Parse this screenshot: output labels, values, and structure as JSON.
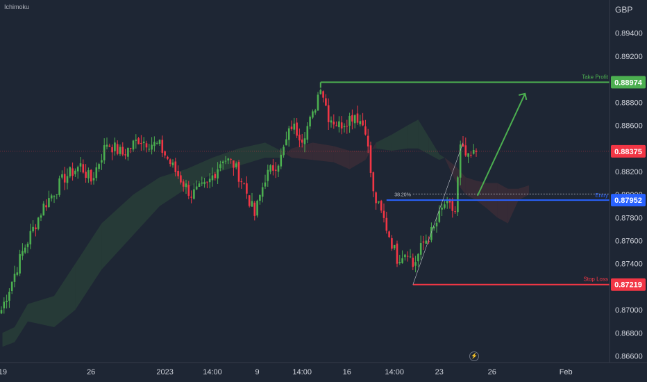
{
  "indicator": "Ichimoku",
  "currency": "GBP",
  "colors": {
    "background": "#1e2634",
    "bull": "#4caf50",
    "bear": "#f23645",
    "take_profit": "#4caf50",
    "stop_loss": "#f23645",
    "entry": "#2962ff",
    "current_price": "#f23645",
    "cloud_bull": "#2d4a3a",
    "cloud_bear": "#4a2f38",
    "axis_text": "#d1d4dc"
  },
  "icons": {
    "replay": "lightning-icon"
  },
  "chart_data": {
    "type": "candlestick",
    "instrument_currency": "GBP",
    "ylim": [
      0.866,
      0.896
    ],
    "y_ticks": [
      "0.89400",
      "0.89200",
      "0.88800",
      "0.88600",
      "0.88200",
      "0.88000",
      "0.87800",
      "0.87600",
      "0.87400",
      "0.87000",
      "0.86800",
      "0.86600"
    ],
    "x_ticks": [
      "19",
      "26",
      "2023",
      "14:00",
      "9",
      "14:00",
      "16",
      "14:00",
      "23",
      "26",
      "Feb"
    ],
    "levels": [
      {
        "name": "Take Profit",
        "value": 0.88974,
        "value_label": "0.88974"
      },
      {
        "name": "Stop Loss",
        "value": 0.87219,
        "value_label": "0.87219"
      },
      {
        "name": "Entry",
        "value": 0.87952,
        "value_label": "0.87952"
      }
    ],
    "current_price": {
      "value": 0.88375,
      "label": "0.88375"
    },
    "fib_label": "38.20%",
    "waypoints": [
      {
        "i": 0,
        "c": 0.87
      },
      {
        "i": 8,
        "c": 0.875
      },
      {
        "i": 16,
        "c": 0.879
      },
      {
        "i": 24,
        "c": 0.8815
      },
      {
        "i": 30,
        "c": 0.8825
      },
      {
        "i": 34,
        "c": 0.8812
      },
      {
        "i": 40,
        "c": 0.8845
      },
      {
        "i": 46,
        "c": 0.8835
      },
      {
        "i": 52,
        "c": 0.8848
      },
      {
        "i": 60,
        "c": 0.8842
      },
      {
        "i": 66,
        "c": 0.882
      },
      {
        "i": 72,
        "c": 0.88
      },
      {
        "i": 78,
        "c": 0.8808
      },
      {
        "i": 84,
        "c": 0.8832
      },
      {
        "i": 88,
        "c": 0.8826
      },
      {
        "i": 92,
        "c": 0.8808
      },
      {
        "i": 96,
        "c": 0.8782
      },
      {
        "i": 100,
        "c": 0.8815
      },
      {
        "i": 106,
        "c": 0.8832
      },
      {
        "i": 110,
        "c": 0.886
      },
      {
        "i": 114,
        "c": 0.885
      },
      {
        "i": 118,
        "c": 0.8868
      },
      {
        "i": 121,
        "c": 0.8896
      },
      {
        "i": 124,
        "c": 0.8868
      },
      {
        "i": 128,
        "c": 0.886
      },
      {
        "i": 134,
        "c": 0.887
      },
      {
        "i": 138,
        "c": 0.8858
      },
      {
        "i": 141,
        "c": 0.88
      },
      {
        "i": 145,
        "c": 0.8778
      },
      {
        "i": 150,
        "c": 0.8745
      },
      {
        "i": 154,
        "c": 0.8752
      },
      {
        "i": 156,
        "c": 0.8738
      },
      {
        "i": 160,
        "c": 0.8758
      },
      {
        "i": 164,
        "c": 0.877
      },
      {
        "i": 168,
        "c": 0.8792
      },
      {
        "i": 172,
        "c": 0.8785
      },
      {
        "i": 174,
        "c": 0.884
      },
      {
        "i": 177,
        "c": 0.883
      },
      {
        "i": 180,
        "c": 0.8837
      }
    ],
    "cloud": [
      {
        "x": 0.4,
        "a": 0.868,
        "b": 0.8668
      },
      {
        "x": 5,
        "a": 0.8685,
        "b": 0.8672
      },
      {
        "x": 10,
        "a": 0.8705,
        "b": 0.869
      },
      {
        "x": 20,
        "a": 0.8712,
        "b": 0.8685
      },
      {
        "x": 28,
        "a": 0.874,
        "b": 0.87
      },
      {
        "x": 38,
        "a": 0.8775,
        "b": 0.8735
      },
      {
        "x": 50,
        "a": 0.88,
        "b": 0.8765
      },
      {
        "x": 60,
        "a": 0.8815,
        "b": 0.879
      },
      {
        "x": 70,
        "a": 0.8822,
        "b": 0.8805
      },
      {
        "x": 80,
        "a": 0.8832,
        "b": 0.8818
      },
      {
        "x": 90,
        "a": 0.884,
        "b": 0.8825
      },
      {
        "x": 100,
        "a": 0.8845,
        "b": 0.8832
      },
      {
        "x": 106,
        "a": 0.8838,
        "b": 0.8832
      },
      {
        "x": 110,
        "a": 0.8832,
        "b": 0.884
      },
      {
        "x": 118,
        "a": 0.883,
        "b": 0.8845
      },
      {
        "x": 126,
        "a": 0.8828,
        "b": 0.8842
      },
      {
        "x": 132,
        "a": 0.8822,
        "b": 0.8838
      },
      {
        "x": 138,
        "a": 0.883,
        "b": 0.8838
      },
      {
        "x": 142,
        "a": 0.8845,
        "b": 0.884
      },
      {
        "x": 148,
        "a": 0.8852,
        "b": 0.8838
      },
      {
        "x": 154,
        "a": 0.886,
        "b": 0.884
      },
      {
        "x": 158,
        "a": 0.8865,
        "b": 0.884
      },
      {
        "x": 162,
        "a": 0.885,
        "b": 0.8835
      },
      {
        "x": 166,
        "a": 0.8835,
        "b": 0.883
      },
      {
        "x": 168,
        "a": 0.8832,
        "b": 0.8832
      },
      {
        "x": 172,
        "a": 0.8812,
        "b": 0.8825
      },
      {
        "x": 176,
        "a": 0.88,
        "b": 0.8815
      },
      {
        "x": 180,
        "a": 0.8795,
        "b": 0.8812
      },
      {
        "x": 184,
        "a": 0.8788,
        "b": 0.881
      },
      {
        "x": 188,
        "a": 0.878,
        "b": 0.881
      },
      {
        "x": 192,
        "a": 0.8775,
        "b": 0.8805
      },
      {
        "x": 196,
        "a": 0.8795,
        "b": 0.8805
      },
      {
        "x": 200,
        "a": 0.88,
        "b": 0.8808
      }
    ]
  }
}
